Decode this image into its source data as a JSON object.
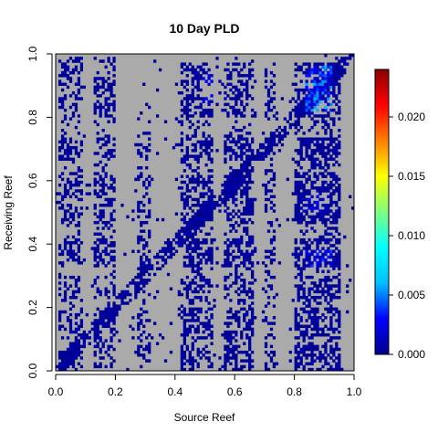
{
  "chart_data": {
    "type": "heatmap",
    "title": "10 Day PLD",
    "xlabel": "Source Reef",
    "ylabel": "Receiving Reef",
    "xlim": [
      0,
      1
    ],
    "ylim": [
      0,
      1
    ],
    "x_ticks": [
      "0.0",
      "0.2",
      "0.4",
      "0.6",
      "0.8",
      "1.0"
    ],
    "y_ticks": [
      "0.0",
      "0.2",
      "0.4",
      "0.6",
      "0.8",
      "1.0"
    ],
    "colorbar": {
      "range": [
        0,
        0.024
      ],
      "ticks": [
        "0.000",
        "0.005",
        "0.010",
        "0.015",
        "0.020"
      ],
      "tick_values": [
        0,
        0.005,
        0.01,
        0.015,
        0.02
      ],
      "colors": [
        "#00008b",
        "#0000ff",
        "#00bfff",
        "#00ffff",
        "#7fff7f",
        "#ffff00",
        "#ff7f00",
        "#ff0000",
        "#8b0000"
      ],
      "placement": "right"
    },
    "background_color": "#aaaaaa",
    "grid": false,
    "description_source_blocks": [
      {
        "x": [
          0.01,
          0.09
        ],
        "y": [
          0.01,
          0.99
        ],
        "density": 0.55
      },
      {
        "x": [
          0.13,
          0.2
        ],
        "y": [
          0.01,
          0.99
        ],
        "density": 0.6
      },
      {
        "x": [
          0.27,
          0.32
        ],
        "y": [
          0.0,
          0.8
        ],
        "density": 0.45
      },
      {
        "x": [
          0.42,
          0.53
        ],
        "y": [
          0.0,
          0.97
        ],
        "density": 0.7
      },
      {
        "x": [
          0.56,
          0.66
        ],
        "y": [
          0.0,
          0.97
        ],
        "density": 0.7
      },
      {
        "x": [
          0.7,
          0.74
        ],
        "y": [
          0.0,
          0.97
        ],
        "density": 0.45
      },
      {
        "x": [
          0.8,
          0.95
        ],
        "y": [
          0.0,
          0.97
        ],
        "density": 0.8
      }
    ],
    "hotspots": [
      {
        "x": [
          0.84,
          0.93
        ],
        "y": [
          0.82,
          0.96
        ],
        "value": 0.006
      },
      {
        "x": [
          0.84,
          0.93
        ],
        "y": [
          0.33,
          0.38
        ],
        "value": 0.004
      },
      {
        "x": [
          0.83,
          0.92
        ],
        "y": [
          0.5,
          0.55
        ],
        "value": 0.003
      },
      {
        "x": [
          0.49,
          0.53
        ],
        "y": [
          0.85,
          0.94
        ],
        "value": 0.003
      }
    ]
  }
}
